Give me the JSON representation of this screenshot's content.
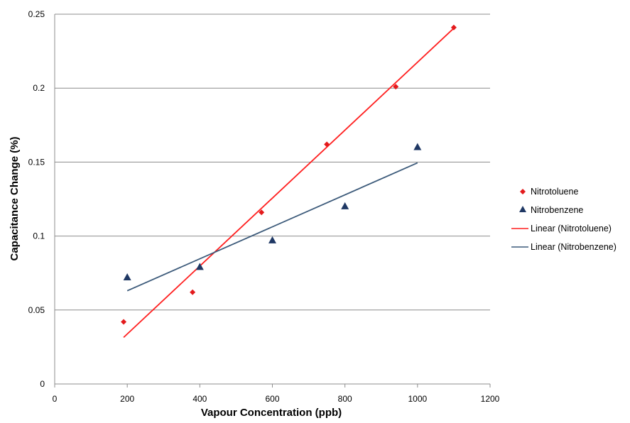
{
  "chart_data": {
    "type": "scatter",
    "title": "",
    "xlabel": "Vapour Concentration (ppb)",
    "ylabel": "Capacitance Change (%)",
    "xlim": [
      0,
      1200
    ],
    "ylim": [
      0,
      0.25
    ],
    "x_ticks": [
      0,
      200,
      400,
      600,
      800,
      1000,
      1200
    ],
    "y_ticks": [
      0,
      0.05,
      0.1,
      0.15,
      0.2,
      0.25
    ],
    "x_tick_labels": [
      "0",
      "200",
      "400",
      "600",
      "800",
      "1000",
      "1200"
    ],
    "y_tick_labels": [
      "0",
      "0.05",
      "0.1",
      "0.15",
      "0.2",
      "0.25"
    ],
    "grid": "horizontal",
    "legend_position": "right",
    "series": [
      {
        "name": "Nitrotoluene",
        "marker": "diamond",
        "color": "#e31a1c",
        "x": [
          190,
          380,
          570,
          750,
          940,
          1100
        ],
        "y": [
          0.042,
          0.062,
          0.116,
          0.162,
          0.201,
          0.241
        ]
      },
      {
        "name": "Nitrobenzene",
        "marker": "triangle",
        "color": "#1f3864",
        "x": [
          200,
          400,
          600,
          800,
          1000
        ],
        "y": [
          0.072,
          0.079,
          0.097,
          0.12,
          0.16
        ]
      }
    ],
    "trendlines": [
      {
        "name": "Linear (Nitrotoluene)",
        "color": "#ff1f1f",
        "x": [
          190,
          1100
        ],
        "y": [
          0.0315,
          0.2405
        ]
      },
      {
        "name": "Linear (Nitrobenzene)",
        "color": "#3c5a7a",
        "x": [
          200,
          1000
        ],
        "y": [
          0.063,
          0.1495
        ]
      }
    ]
  }
}
